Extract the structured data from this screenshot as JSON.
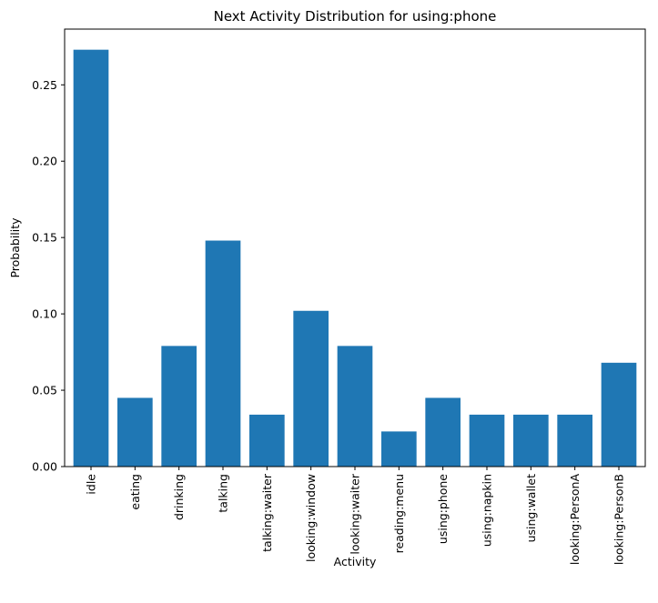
{
  "chart_data": {
    "type": "bar",
    "title": "Next Activity Distribution for using:phone",
    "xlabel": "Activity",
    "ylabel": "Probability",
    "categories": [
      "idle",
      "eating",
      "drinking",
      "talking",
      "talking:waiter",
      "looking:window",
      "looking:waiter",
      "reading:menu",
      "using:phone",
      "using:napkin",
      "using:wallet",
      "looking:PersonA",
      "looking:PersonB"
    ],
    "values": [
      0.273,
      0.045,
      0.079,
      0.148,
      0.034,
      0.102,
      0.079,
      0.023,
      0.045,
      0.034,
      0.034,
      0.034,
      0.068
    ],
    "yticks": [
      "0.00",
      "0.05",
      "0.10",
      "0.15",
      "0.20",
      "0.25"
    ],
    "ylim": [
      0,
      0.2865
    ],
    "grid": false,
    "bar_color": "#1f77b4"
  }
}
